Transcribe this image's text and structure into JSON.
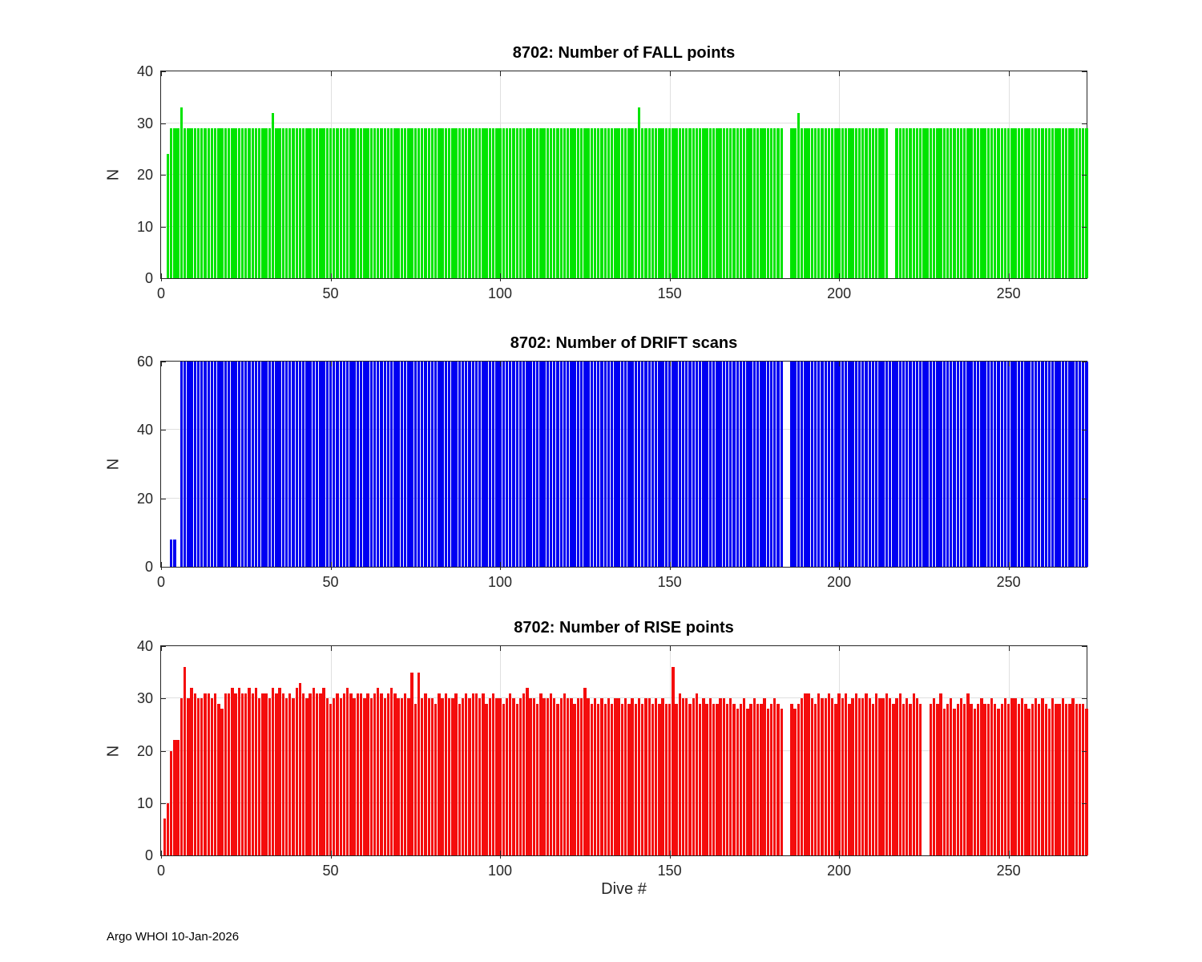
{
  "figure": {
    "xlabel": "Dive #",
    "credit": "Argo WHOI 10-Jan-2026"
  },
  "chart_data": [
    {
      "type": "bar",
      "title": "8702: Number of FALL points",
      "ylabel": "N",
      "xlabel": "Dive #",
      "color": "#00E400",
      "grid": true,
      "xlim": [
        0,
        273
      ],
      "ylim": [
        0,
        40
      ],
      "xticks": [
        0,
        50,
        100,
        150,
        200,
        250
      ],
      "yticks": [
        0,
        10,
        20,
        30,
        40
      ],
      "x_first_dive": 1,
      "values": [
        0,
        24,
        29,
        29,
        29,
        33,
        29,
        29,
        29,
        29,
        29,
        29,
        29,
        29,
        29,
        29,
        29,
        29,
        29,
        29,
        29,
        29,
        29,
        29,
        29,
        29,
        29,
        29,
        29,
        29,
        29,
        29,
        32,
        29,
        29,
        29,
        29,
        29,
        29,
        29,
        29,
        29,
        29,
        29,
        29,
        29,
        29,
        29,
        29,
        29,
        29,
        29,
        29,
        29,
        29,
        29,
        29,
        29,
        29,
        29,
        29,
        29,
        29,
        29,
        29,
        29,
        29,
        29,
        29,
        29,
        29,
        29,
        29,
        29,
        29,
        29,
        29,
        29,
        29,
        29,
        29,
        29,
        29,
        29,
        29,
        29,
        29,
        29,
        29,
        29,
        29,
        29,
        29,
        29,
        29,
        29,
        29,
        29,
        29,
        29,
        29,
        29,
        29,
        29,
        29,
        29,
        29,
        29,
        29,
        29,
        29,
        29,
        29,
        29,
        29,
        29,
        29,
        29,
        29,
        29,
        29,
        29,
        29,
        29,
        29,
        29,
        29,
        29,
        29,
        29,
        29,
        29,
        29,
        29,
        29,
        29,
        29,
        29,
        29,
        29,
        33,
        29,
        29,
        29,
        29,
        29,
        29,
        29,
        29,
        29,
        29,
        29,
        29,
        29,
        29,
        29,
        29,
        29,
        29,
        29,
        29,
        29,
        29,
        29,
        29,
        29,
        29,
        29,
        29,
        29,
        29,
        29,
        29,
        29,
        29,
        29,
        29,
        29,
        29,
        29,
        29,
        29,
        29,
        0,
        0,
        29,
        29,
        32,
        29,
        29,
        29,
        29,
        29,
        29,
        29,
        29,
        29,
        29,
        29,
        29,
        29,
        29,
        29,
        29,
        29,
        29,
        29,
        29,
        29,
        29,
        29,
        29,
        29,
        29,
        0,
        0,
        29,
        29,
        29,
        29,
        29,
        29,
        29,
        29,
        29,
        29,
        29,
        29,
        29,
        29,
        29,
        29,
        29,
        29,
        29,
        29,
        29,
        29,
        29,
        29,
        29,
        29,
        29,
        29,
        29,
        29,
        29,
        29,
        29,
        29,
        29,
        29,
        29,
        29,
        29,
        29,
        29,
        29,
        29,
        29,
        29,
        29,
        29,
        29,
        29,
        29,
        29,
        29,
        29,
        29,
        29,
        29,
        29
      ]
    },
    {
      "type": "bar",
      "title": "8702: Number of DRIFT scans",
      "ylabel": "N",
      "xlabel": "Dive #",
      "color": "#0000F2",
      "grid": true,
      "xlim": [
        0,
        273
      ],
      "ylim": [
        0,
        60
      ],
      "xticks": [
        0,
        50,
        100,
        150,
        200,
        250
      ],
      "yticks": [
        0,
        20,
        40,
        60
      ],
      "x_first_dive": 1,
      "values": [
        0,
        0,
        8,
        8,
        0,
        60,
        60,
        60,
        60,
        60,
        60,
        60,
        60,
        60,
        60,
        60,
        60,
        60,
        60,
        60,
        60,
        60,
        60,
        60,
        60,
        60,
        60,
        60,
        60,
        60,
        60,
        60,
        60,
        60,
        60,
        60,
        60,
        60,
        60,
        60,
        60,
        60,
        60,
        60,
        60,
        60,
        60,
        60,
        60,
        60,
        60,
        60,
        60,
        60,
        60,
        60,
        60,
        60,
        60,
        60,
        60,
        60,
        60,
        60,
        60,
        60,
        60,
        60,
        60,
        60,
        60,
        60,
        60,
        60,
        60,
        60,
        60,
        60,
        60,
        60,
        60,
        60,
        60,
        60,
        60,
        60,
        60,
        60,
        60,
        60,
        60,
        60,
        60,
        60,
        60,
        60,
        60,
        60,
        60,
        60,
        60,
        60,
        60,
        60,
        60,
        60,
        60,
        60,
        60,
        60,
        60,
        60,
        60,
        60,
        60,
        60,
        60,
        60,
        60,
        60,
        60,
        60,
        60,
        60,
        60,
        60,
        60,
        60,
        60,
        60,
        60,
        60,
        60,
        60,
        60,
        60,
        60,
        60,
        60,
        60,
        60,
        60,
        60,
        60,
        60,
        60,
        60,
        60,
        60,
        60,
        60,
        60,
        60,
        60,
        60,
        60,
        60,
        60,
        60,
        60,
        60,
        60,
        60,
        60,
        60,
        60,
        60,
        60,
        60,
        60,
        60,
        60,
        60,
        60,
        60,
        60,
        60,
        60,
        60,
        60,
        60,
        60,
        60,
        0,
        0,
        60,
        60,
        60,
        60,
        60,
        60,
        60,
        60,
        60,
        60,
        60,
        60,
        60,
        60,
        60,
        60,
        60,
        60,
        60,
        60,
        60,
        60,
        60,
        60,
        60,
        60,
        60,
        60,
        60,
        60,
        60,
        60,
        60,
        60,
        60,
        60,
        60,
        60,
        60,
        60,
        60,
        60,
        60,
        60,
        60,
        60,
        60,
        60,
        60,
        60,
        60,
        60,
        60,
        60,
        60,
        60,
        60,
        60,
        60,
        60,
        60,
        60,
        60,
        60,
        60,
        60,
        60,
        60,
        60,
        60,
        60,
        60,
        60,
        60,
        60,
        60,
        60,
        60,
        60,
        60,
        60,
        60,
        60,
        60,
        60,
        60,
        60,
        60
      ]
    },
    {
      "type": "bar",
      "title": "8702: Number of RISE points",
      "ylabel": "N",
      "xlabel": "Dive #",
      "color": "#F40D0D",
      "grid": true,
      "xlim": [
        0,
        273
      ],
      "ylim": [
        0,
        40
      ],
      "xticks": [
        0,
        50,
        100,
        150,
        200,
        250
      ],
      "yticks": [
        0,
        10,
        20,
        30,
        40
      ],
      "x_first_dive": 1,
      "values": [
        7,
        10,
        20,
        22,
        22,
        30,
        36,
        30,
        32,
        31,
        30,
        30,
        31,
        31,
        30,
        31,
        29,
        28,
        31,
        31,
        32,
        31,
        32,
        31,
        31,
        32,
        31,
        32,
        30,
        31,
        31,
        30,
        32,
        31,
        32,
        31,
        30,
        31,
        30,
        32,
        33,
        31,
        30,
        31,
        32,
        31,
        31,
        32,
        30,
        29,
        30,
        31,
        30,
        31,
        32,
        31,
        30,
        31,
        31,
        30,
        31,
        30,
        31,
        32,
        31,
        30,
        31,
        32,
        31,
        30,
        30,
        31,
        30,
        35,
        29,
        35,
        30,
        31,
        30,
        30,
        29,
        31,
        30,
        31,
        30,
        30,
        31,
        29,
        30,
        31,
        30,
        31,
        31,
        30,
        31,
        29,
        30,
        31,
        30,
        30,
        29,
        30,
        31,
        30,
        29,
        30,
        31,
        32,
        30,
        30,
        29,
        31,
        30,
        30,
        31,
        30,
        29,
        30,
        31,
        30,
        30,
        29,
        30,
        30,
        32,
        30,
        29,
        30,
        29,
        30,
        29,
        30,
        29,
        30,
        30,
        29,
        30,
        29,
        30,
        29,
        30,
        29,
        30,
        30,
        29,
        30,
        29,
        30,
        29,
        29,
        36,
        29,
        31,
        30,
        30,
        29,
        30,
        31,
        29,
        30,
        29,
        30,
        29,
        29,
        30,
        30,
        29,
        30,
        29,
        28,
        29,
        30,
        28,
        29,
        30,
        29,
        29,
        30,
        28,
        29,
        30,
        29,
        28,
        0,
        0,
        29,
        28,
        29,
        30,
        31,
        31,
        30,
        29,
        31,
        30,
        30,
        31,
        30,
        29,
        31,
        30,
        31,
        29,
        30,
        31,
        30,
        30,
        31,
        30,
        29,
        31,
        30,
        30,
        31,
        30,
        29,
        30,
        31,
        29,
        30,
        29,
        31,
        30,
        29,
        0,
        0,
        29,
        30,
        29,
        31,
        28,
        29,
        30,
        28,
        29,
        30,
        29,
        31,
        29,
        28,
        29,
        30,
        29,
        29,
        30,
        29,
        28,
        29,
        30,
        29,
        30,
        30,
        29,
        30,
        29,
        28,
        29,
        30,
        29,
        30,
        29,
        28,
        30,
        29,
        29,
        30,
        29,
        29,
        30,
        29,
        29,
        29,
        28
      ]
    }
  ]
}
